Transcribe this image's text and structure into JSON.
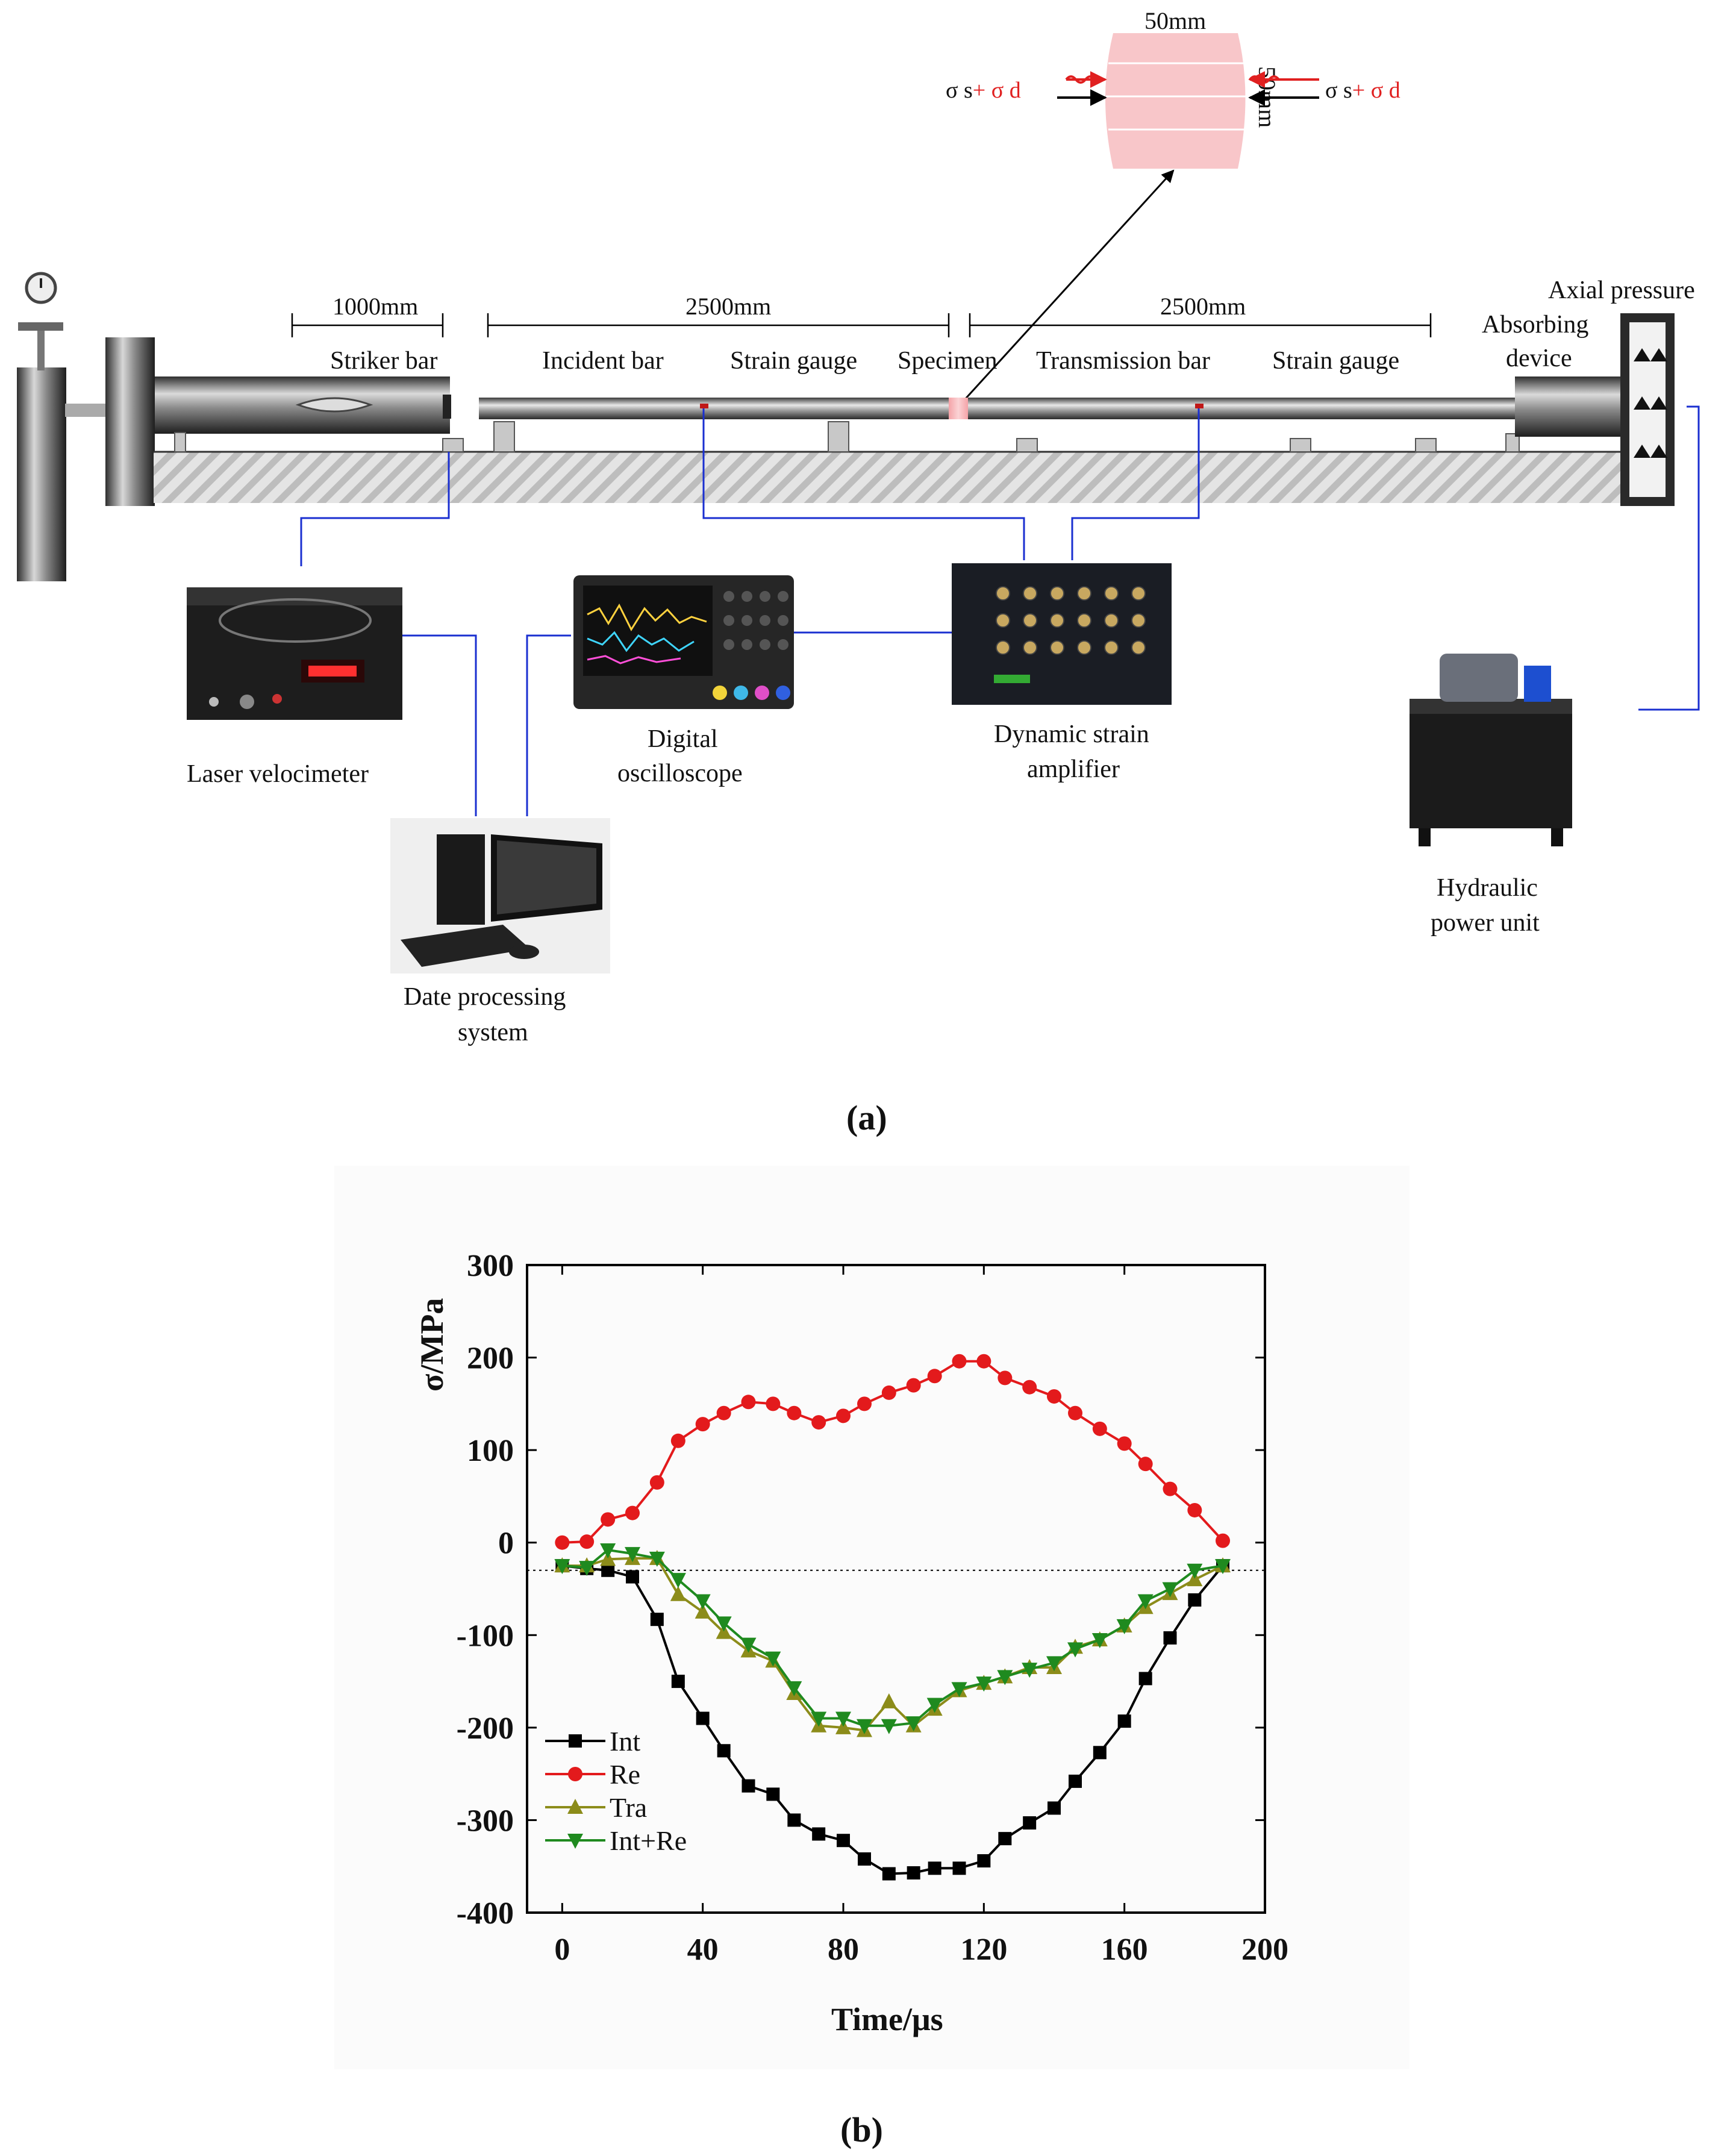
{
  "panel_a": {
    "caption": "(a)",
    "specimen": {
      "width_label": "50mm",
      "height_label": "50mm",
      "left_stress": {
        "sigma_s": "σ s",
        "plus_sigma_d": "+ σ d"
      },
      "right_stress": {
        "sigma_s": "σ s",
        "plus_sigma_d": "+ σ d"
      }
    },
    "dimensions": {
      "striker": "1000mm",
      "incident": "2500mm",
      "transmission": "2500mm"
    },
    "labels": {
      "axial_pressure": "Axial pressure",
      "absorbing_line1": "Absorbing",
      "absorbing_line2": "device",
      "striker_bar": "Striker bar",
      "incident_bar": "Incident bar",
      "strain_gauge_1": "Strain gauge",
      "specimen": "Specimen",
      "transmission_bar": "Transmission bar",
      "strain_gauge_2": "Strain gauge",
      "laser_velocimeter": "Laser velocimeter",
      "oscilloscope_line1": "Digital",
      "oscilloscope_line2": "oscilloscope",
      "amplifier_line1": "Dynamic strain",
      "amplifier_line2": "amplifier",
      "hydraulic_line1": "Hydraulic",
      "hydraulic_line2": "power unit",
      "processing_line1": "Date processing",
      "processing_line2": "system"
    }
  },
  "panel_b": {
    "caption": "(b)",
    "chart_data": {
      "type": "line",
      "xlabel": "Time/μs",
      "ylabel": "σ/MPa",
      "xlim": [
        -10,
        200
      ],
      "ylim": [
        -400,
        300
      ],
      "xticks": [
        0,
        40,
        80,
        120,
        160,
        200
      ],
      "yticks": [
        300,
        200,
        100,
        0,
        -100,
        -200,
        -300,
        -400
      ],
      "reference_line_y": -30,
      "legend_position": "bottom-left",
      "series": [
        {
          "name": "Int",
          "color": "#000000",
          "marker": "square",
          "points": [
            [
              0,
              -25
            ],
            [
              7,
              -28
            ],
            [
              13,
              -30
            ],
            [
              20,
              -37
            ],
            [
              27,
              -83
            ],
            [
              33,
              -150
            ],
            [
              40,
              -190
            ],
            [
              46,
              -225
            ],
            [
              53,
              -263
            ],
            [
              60,
              -272
            ],
            [
              66,
              -300
            ],
            [
              73,
              -315
            ],
            [
              80,
              -322
            ],
            [
              86,
              -342
            ],
            [
              93,
              -358
            ],
            [
              100,
              -357
            ],
            [
              106,
              -352
            ],
            [
              113,
              -352
            ],
            [
              120,
              -344
            ],
            [
              126,
              -320
            ],
            [
              133,
              -303
            ],
            [
              140,
              -287
            ],
            [
              146,
              -258
            ],
            [
              153,
              -227
            ],
            [
              160,
              -193
            ],
            [
              166,
              -147
            ],
            [
              173,
              -103
            ],
            [
              180,
              -62
            ],
            [
              188,
              -25
            ]
          ]
        },
        {
          "name": "Re",
          "color": "#e31a1c",
          "marker": "circle",
          "points": [
            [
              0,
              0
            ],
            [
              7,
              1
            ],
            [
              13,
              25
            ],
            [
              20,
              32
            ],
            [
              27,
              65
            ],
            [
              33,
              110
            ],
            [
              40,
              128
            ],
            [
              46,
              140
            ],
            [
              53,
              152
            ],
            [
              60,
              150
            ],
            [
              66,
              140
            ],
            [
              73,
              130
            ],
            [
              80,
              137
            ],
            [
              86,
              150
            ],
            [
              93,
              162
            ],
            [
              100,
              170
            ],
            [
              106,
              180
            ],
            [
              113,
              196
            ],
            [
              120,
              196
            ],
            [
              126,
              178
            ],
            [
              133,
              168
            ],
            [
              140,
              158
            ],
            [
              146,
              140
            ],
            [
              153,
              123
            ],
            [
              160,
              107
            ],
            [
              166,
              85
            ],
            [
              173,
              58
            ],
            [
              180,
              35
            ],
            [
              188,
              2
            ]
          ]
        },
        {
          "name": "Tra",
          "color": "#8c8c1a",
          "marker": "triangle-up",
          "points": [
            [
              0,
              -25
            ],
            [
              7,
              -25
            ],
            [
              13,
              -18
            ],
            [
              20,
              -17
            ],
            [
              27,
              -17
            ],
            [
              33,
              -56
            ],
            [
              40,
              -75
            ],
            [
              46,
              -97
            ],
            [
              53,
              -117
            ],
            [
              60,
              -128
            ],
            [
              66,
              -163
            ],
            [
              73,
              -198
            ],
            [
              80,
              -200
            ],
            [
              86,
              -203
            ],
            [
              93,
              -172
            ],
            [
              100,
              -198
            ],
            [
              106,
              -180
            ],
            [
              113,
              -160
            ],
            [
              120,
              -152
            ],
            [
              126,
              -145
            ],
            [
              133,
              -135
            ],
            [
              140,
              -135
            ],
            [
              146,
              -113
            ],
            [
              153,
              -105
            ],
            [
              160,
              -90
            ],
            [
              166,
              -70
            ],
            [
              173,
              -55
            ],
            [
              180,
              -40
            ],
            [
              188,
              -25
            ]
          ]
        },
        {
          "name": "Int+Re",
          "color": "#1f8a1f",
          "marker": "triangle-down",
          "points": [
            [
              0,
              -25
            ],
            [
              7,
              -27
            ],
            [
              13,
              -8
            ],
            [
              20,
              -12
            ],
            [
              27,
              -17
            ],
            [
              33,
              -40
            ],
            [
              40,
              -63
            ],
            [
              46,
              -87
            ],
            [
              53,
              -110
            ],
            [
              60,
              -125
            ],
            [
              66,
              -157
            ],
            [
              73,
              -190
            ],
            [
              80,
              -190
            ],
            [
              86,
              -198
            ],
            [
              93,
              -198
            ],
            [
              100,
              -195
            ],
            [
              106,
              -175
            ],
            [
              113,
              -158
            ],
            [
              120,
              -152
            ],
            [
              126,
              -145
            ],
            [
              133,
              -137
            ],
            [
              140,
              -130
            ],
            [
              146,
              -115
            ],
            [
              153,
              -105
            ],
            [
              160,
              -90
            ],
            [
              166,
              -63
            ],
            [
              173,
              -50
            ],
            [
              180,
              -30
            ],
            [
              188,
              -25
            ]
          ]
        }
      ]
    }
  }
}
